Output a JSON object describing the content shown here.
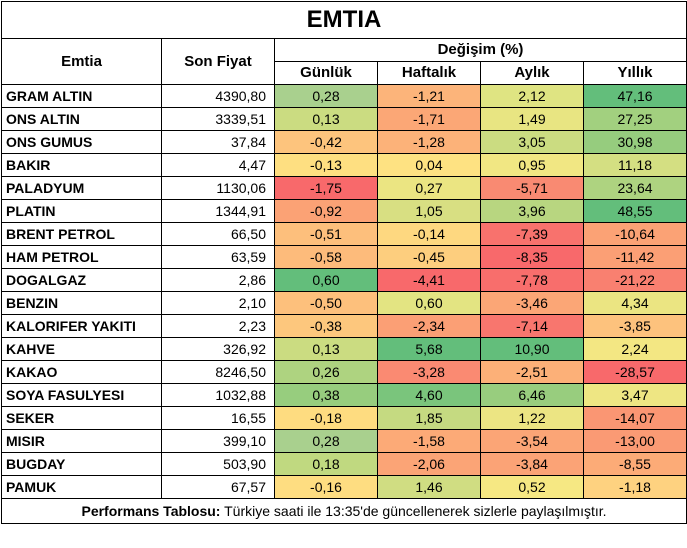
{
  "title": "EMTIA",
  "headers": {
    "commodity": "Emtia",
    "last_price": "Son Fiyat",
    "change_group": "Değişim (%)",
    "daily": "Günlük",
    "weekly": "Haftalık",
    "monthly": "Aylık",
    "yearly": "Yıllık"
  },
  "rows": [
    {
      "name": "GRAM ALTIN",
      "price": "4390,80",
      "d": "0,28",
      "w": "-1,21",
      "m": "2,12",
      "y": "47,16",
      "cd": "#a9d08e",
      "cw": "#fcb47a",
      "cm": "#dfe482",
      "cy": "#63be7b"
    },
    {
      "name": "ONS ALTIN",
      "price": "3339,51",
      "d": "0,13",
      "w": "-1,71",
      "m": "1,49",
      "y": "27,25",
      "cd": "#cbdc81",
      "cw": "#fba776",
      "cm": "#e8e582",
      "cy": "#a2d07f"
    },
    {
      "name": "ONS GUMUS",
      "price": "37,84",
      "d": "-0,42",
      "w": "-1,28",
      "m": "3,05",
      "y": "30,98",
      "cd": "#fdc47d",
      "cw": "#fcb279",
      "cm": "#cbdc81",
      "cy": "#96cc7e"
    },
    {
      "name": "BAKIR",
      "price": "4,47",
      "d": "-0,13",
      "w": "0,04",
      "m": "0,95",
      "y": "11,18",
      "cd": "#fedf81",
      "cw": "#fee282",
      "cm": "#f1e783",
      "cy": "#d4df82"
    },
    {
      "name": "PALADYUM",
      "price": "1130,06",
      "d": "-1,75",
      "w": "0,27",
      "m": "-5,71",
      "y": "23,64",
      "cd": "#f8696b",
      "cw": "#ebe582",
      "cm": "#f98a72",
      "cy": "#aed380"
    },
    {
      "name": "PLATIN",
      "price": "1344,91",
      "d": "-0,92",
      "w": "1,05",
      "m": "3,96",
      "y": "48,55",
      "cd": "#fba275",
      "cw": "#d8df82",
      "cm": "#b8d680",
      "cy": "#63be7b"
    },
    {
      "name": "BRENT PETROL",
      "price": "66,50",
      "d": "-0,51",
      "w": "-0,14",
      "m": "-7,39",
      "y": "-10,64",
      "cd": "#fdbf7c",
      "cw": "#fed880",
      "cm": "#f8726d",
      "cy": "#fba275"
    },
    {
      "name": "HAM PETROL",
      "price": "63,59",
      "d": "-0,58",
      "w": "-0,45",
      "m": "-8,35",
      "y": "-11,42",
      "cd": "#fdbb7b",
      "cw": "#fdce7e",
      "cm": "#f8696b",
      "cy": "#fb9f75"
    },
    {
      "name": "DOGALGAZ",
      "price": "2,86",
      "d": "0,60",
      "w": "-4,41",
      "m": "-7,78",
      "y": "-21,22",
      "cd": "#63be7b",
      "cw": "#f8696b",
      "cm": "#f86e6c",
      "cy": "#f98070"
    },
    {
      "name": "BENZIN",
      "price": "2,10",
      "d": "-0,50",
      "w": "0,60",
      "m": "-3,46",
      "y": "4,34",
      "cd": "#fdc07c",
      "cw": "#e3e482",
      "cm": "#fba676",
      "cy": "#ebe582"
    },
    {
      "name": "KALORIFER YAKITI",
      "price": "2,23",
      "d": "-0,38",
      "w": "-2,34",
      "m": "-7,14",
      "y": "-3,85",
      "cd": "#fdc77d",
      "cw": "#fb9f75",
      "cm": "#f8766e",
      "cy": "#fdc27d"
    },
    {
      "name": "KAHVE",
      "price": "326,92",
      "d": "0,13",
      "w": "5,68",
      "m": "10,90",
      "y": "2,24",
      "cd": "#cbdc81",
      "cw": "#63be7b",
      "cm": "#63be7b",
      "cy": "#f3e783"
    },
    {
      "name": "KAKAO",
      "price": "8246,50",
      "d": "0,26",
      "w": "-3,28",
      "m": "-2,51",
      "y": "-28,57",
      "cd": "#aed380",
      "cw": "#fa8a72",
      "cm": "#fcb078",
      "cy": "#f8696b"
    },
    {
      "name": "SOYA FASULYESI",
      "price": "1032,88",
      "d": "0,38",
      "w": "4,60",
      "m": "6,46",
      "y": "3,47",
      "cd": "#97cd7e",
      "cw": "#7ac57c",
      "cm": "#98cd7e",
      "cy": "#eee683"
    },
    {
      "name": "SEKER",
      "price": "16,55",
      "d": "-0,18",
      "w": "1,85",
      "m": "1,22",
      "y": "-14,07",
      "cd": "#fedc80",
      "cw": "#c5da81",
      "cm": "#ece583",
      "cy": "#fa9673"
    },
    {
      "name": "MISIR",
      "price": "399,10",
      "d": "0,28",
      "w": "-1,58",
      "m": "-3,54",
      "y": "-13,00",
      "cd": "#a9d08e",
      "cw": "#fcaa77",
      "cm": "#fba576",
      "cy": "#fa9a74"
    },
    {
      "name": "BUGDAY",
      "price": "503,90",
      "d": "0,18",
      "w": "-2,06",
      "m": "-3,84",
      "y": "-8,55",
      "cd": "#c0d980",
      "cw": "#fba476",
      "cm": "#fba376",
      "cy": "#fcab77"
    },
    {
      "name": "PAMUK",
      "price": "67,57",
      "d": "-0,16",
      "w": "1,46",
      "m": "0,52",
      "y": "-1,18",
      "cd": "#fedd81",
      "cw": "#d0dd82",
      "cm": "#f6e883",
      "cy": "#fed280"
    }
  ],
  "footer": {
    "label": "Performans Tablosu:",
    "text": " Türkiye saati ile 13:35'de güncellenerek sizlerle paylaşılmıştır."
  }
}
